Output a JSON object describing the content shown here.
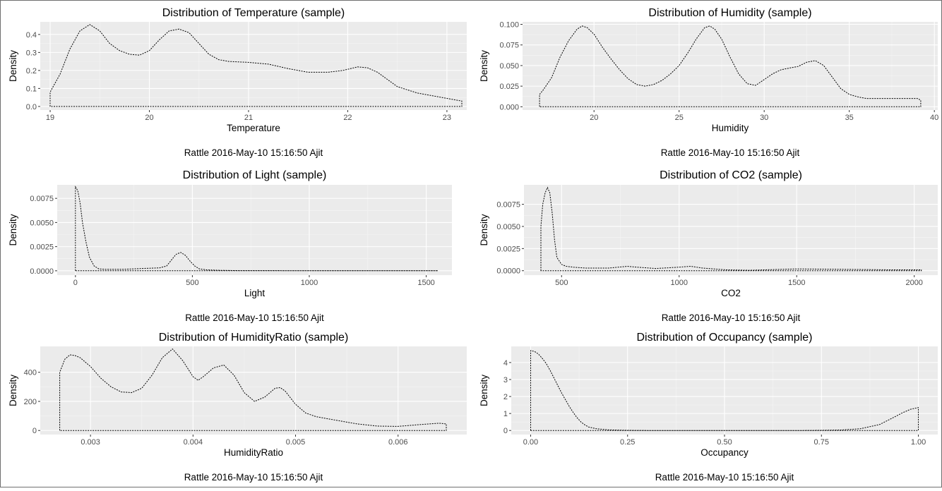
{
  "colors": {
    "panel_bg": "#ebebeb",
    "grid_major": "#ffffff",
    "grid_minor": "#f5f5f5",
    "line": "#000000",
    "axis_text": "#4d4d4d"
  },
  "chart_data": [
    {
      "type": "area",
      "title": "Distribution of Temperature (sample)",
      "xlabel": "Temperature",
      "ylabel": "Density",
      "caption": "Rattle 2016-May-10 15:16:50 Ajit",
      "xlim": [
        18.9,
        23.2
      ],
      "ylim": [
        -0.02,
        0.47
      ],
      "xticks": [
        19,
        20,
        21,
        22,
        23
      ],
      "xtick_labels": [
        "19",
        "20",
        "21",
        "22",
        "23"
      ],
      "yticks": [
        0,
        0.1,
        0.2,
        0.3,
        0.4
      ],
      "ytick_labels": [
        "0.0",
        "0.1",
        "0.2",
        "0.3",
        "0.4"
      ],
      "series": [
        {
          "x": [
            19.0,
            19.0,
            19.1,
            19.2,
            19.3,
            19.4,
            19.5,
            19.6,
            19.7,
            19.8,
            19.9,
            20.0,
            20.1,
            20.2,
            20.3,
            20.4,
            20.5,
            20.6,
            20.7,
            20.8,
            21.0,
            21.2,
            21.4,
            21.6,
            21.8,
            21.95,
            22.1,
            22.2,
            22.3,
            22.4,
            22.5,
            22.7,
            22.9,
            23.1,
            23.15,
            23.15
          ],
          "y": [
            0.0,
            0.08,
            0.18,
            0.32,
            0.42,
            0.455,
            0.42,
            0.35,
            0.31,
            0.29,
            0.285,
            0.31,
            0.37,
            0.42,
            0.43,
            0.41,
            0.35,
            0.29,
            0.26,
            0.25,
            0.245,
            0.235,
            0.21,
            0.19,
            0.19,
            0.2,
            0.22,
            0.215,
            0.19,
            0.15,
            0.11,
            0.075,
            0.055,
            0.035,
            0.03,
            0.0
          ]
        }
      ]
    },
    {
      "type": "area",
      "title": "Distribution of Humidity (sample)",
      "xlabel": "Humidity",
      "ylabel": "Density",
      "caption": "Rattle 2016-May-10 15:16:50 Ajit",
      "xlim": [
        15.8,
        40.2
      ],
      "ylim": [
        -0.004,
        0.103
      ],
      "xticks": [
        20,
        25,
        30,
        35,
        40
      ],
      "xtick_labels": [
        "20",
        "25",
        "30",
        "35",
        "40"
      ],
      "yticks": [
        0,
        0.025,
        0.05,
        0.075,
        0.1
      ],
      "ytick_labels": [
        "0.000",
        "0.025",
        "0.050",
        "0.075",
        "0.100"
      ],
      "series": [
        {
          "x": [
            16.8,
            16.8,
            17.0,
            17.5,
            18.0,
            18.5,
            19.0,
            19.3,
            19.6,
            20.0,
            20.5,
            21.0,
            21.5,
            22.0,
            22.5,
            23.0,
            23.5,
            24.0,
            24.5,
            25.0,
            25.5,
            26.0,
            26.5,
            26.8,
            27.1,
            27.5,
            28.0,
            28.5,
            29.0,
            29.5,
            30.0,
            30.5,
            31.0,
            31.5,
            32.0,
            32.5,
            33.0,
            33.5,
            34.0,
            34.5,
            35.0,
            35.5,
            36.0,
            37.0,
            38.0,
            39.0,
            39.2,
            39.2
          ],
          "y": [
            0.0,
            0.015,
            0.02,
            0.035,
            0.06,
            0.08,
            0.094,
            0.098,
            0.096,
            0.088,
            0.072,
            0.058,
            0.045,
            0.034,
            0.027,
            0.025,
            0.027,
            0.032,
            0.04,
            0.05,
            0.065,
            0.082,
            0.096,
            0.098,
            0.094,
            0.082,
            0.06,
            0.04,
            0.028,
            0.026,
            0.033,
            0.04,
            0.045,
            0.047,
            0.049,
            0.054,
            0.056,
            0.05,
            0.036,
            0.022,
            0.015,
            0.012,
            0.01,
            0.01,
            0.01,
            0.01,
            0.008,
            0.0
          ]
        }
      ]
    },
    {
      "type": "area",
      "title": "Distribution of Light (sample)",
      "xlabel": "Light",
      "ylabel": "Density",
      "caption": "Rattle 2016-May-10 15:16:50 Ajit",
      "xlim": [
        -78,
        1610
      ],
      "ylim": [
        -0.00045,
        0.0089
      ],
      "xticks": [
        0,
        500,
        1000,
        1500
      ],
      "xtick_labels": [
        "0",
        "500",
        "1000",
        "1500"
      ],
      "yticks": [
        0,
        0.0025,
        0.005,
        0.0075
      ],
      "ytick_labels": [
        "0.0000",
        "0.0025",
        "0.0050",
        "0.0075"
      ],
      "series": [
        {
          "x": [
            0,
            0,
            10,
            20,
            30,
            45,
            60,
            80,
            100,
            130,
            200,
            300,
            360,
            390,
            410,
            430,
            450,
            470,
            490,
            510,
            530,
            560,
            620,
            700,
            900,
            1200,
            1550,
            1550
          ],
          "y": [
            0,
            0.0087,
            0.0083,
            0.007,
            0.005,
            0.003,
            0.0014,
            0.0005,
            0.0002,
            0.00015,
            0.00015,
            0.00025,
            0.0003,
            0.0005,
            0.0011,
            0.0017,
            0.0019,
            0.0016,
            0.001,
            0.0005,
            0.0002,
            0.0001,
            5e-05,
            2e-05,
            1e-05,
            1e-05,
            1e-05,
            0
          ]
        }
      ]
    },
    {
      "type": "area",
      "title": "Distribution of CO2 (sample)",
      "xlabel": "CO2",
      "ylabel": "Density",
      "caption": "Rattle 2016-May-10 15:16:50 Ajit",
      "xlim": [
        340,
        2100
      ],
      "ylim": [
        -0.0005,
        0.0097
      ],
      "xticks": [
        500,
        1000,
        1500,
        2000
      ],
      "xtick_labels": [
        "500",
        "1000",
        "1500",
        "2000"
      ],
      "yticks": [
        0,
        0.0025,
        0.005,
        0.0075
      ],
      "ytick_labels": [
        "0.0000",
        "0.0025",
        "0.0050",
        "0.0075"
      ],
      "series": [
        {
          "x": [
            412,
            412,
            420,
            430,
            440,
            450,
            460,
            470,
            480,
            500,
            520,
            550,
            600,
            700,
            780,
            820,
            900,
            1000,
            1050,
            1100,
            1200,
            1300,
            1500,
            1700,
            1900,
            2030,
            2030
          ],
          "y": [
            0,
            0.005,
            0.0075,
            0.0088,
            0.0094,
            0.0088,
            0.0065,
            0.0035,
            0.0015,
            0.0007,
            0.0005,
            0.0004,
            0.0003,
            0.0003,
            0.0005,
            0.0004,
            0.00025,
            0.0004,
            0.0005,
            0.0003,
            0.0001,
            5e-05,
            0.0002,
            0.00015,
            0.0001,
            0.0001,
            0
          ]
        }
      ]
    },
    {
      "type": "area",
      "title": "Distribution of HumidityRatio (sample)",
      "xlabel": "HumidityRatio",
      "ylabel": "Density",
      "caption": "Rattle 2016-May-10 15:16:50 Ajit",
      "xlim": [
        0.00251,
        0.00667
      ],
      "ylim": [
        -28,
        578
      ],
      "xticks": [
        0.003,
        0.004,
        0.005,
        0.006
      ],
      "xtick_labels": [
        "0.003",
        "0.004",
        "0.005",
        "0.006"
      ],
      "yticks": [
        0,
        200,
        400
      ],
      "ytick_labels": [
        "0",
        "200",
        "400"
      ],
      "series": [
        {
          "x": [
            0.0027,
            0.0027,
            0.00275,
            0.0028,
            0.00285,
            0.0029,
            0.003,
            0.0031,
            0.0032,
            0.0033,
            0.0034,
            0.0035,
            0.0036,
            0.0037,
            0.0038,
            0.0039,
            0.004,
            0.00405,
            0.0041,
            0.0042,
            0.0043,
            0.0044,
            0.0045,
            0.0046,
            0.0047,
            0.0048,
            0.00485,
            0.0049,
            0.005,
            0.0051,
            0.0052,
            0.0054,
            0.0056,
            0.0058,
            0.006,
            0.0062,
            0.0064,
            0.00647,
            0.00647
          ],
          "y": [
            0,
            400,
            490,
            520,
            515,
            500,
            440,
            360,
            300,
            265,
            260,
            290,
            380,
            500,
            560,
            480,
            370,
            345,
            370,
            430,
            450,
            380,
            260,
            200,
            230,
            290,
            295,
            270,
            180,
            120,
            95,
            70,
            45,
            30,
            28,
            40,
            50,
            45,
            0
          ]
        }
      ]
    },
    {
      "type": "area",
      "title": "Distribution of Occupancy (sample)",
      "xlabel": "Occupancy",
      "ylabel": "Density",
      "caption": "Rattle 2016-May-10 15:16:50 Ajit",
      "xlim": [
        -0.05,
        1.05
      ],
      "ylim": [
        -0.24,
        4.95
      ],
      "xticks": [
        0,
        0.25,
        0.5,
        0.75,
        1.0
      ],
      "xtick_labels": [
        "0.00",
        "0.25",
        "0.50",
        "0.75",
        "1.00"
      ],
      "yticks": [
        0,
        1,
        2,
        3,
        4
      ],
      "ytick_labels": [
        "0",
        "1",
        "2",
        "3",
        "4"
      ],
      "series": [
        {
          "x": [
            0,
            0,
            0.01,
            0.02,
            0.03,
            0.04,
            0.05,
            0.06,
            0.07,
            0.08,
            0.09,
            0.1,
            0.11,
            0.12,
            0.13,
            0.14,
            0.15,
            0.17,
            0.2,
            0.25,
            0.3,
            0.5,
            0.7,
            0.75,
            0.8,
            0.85,
            0.9,
            0.93,
            0.96,
            0.98,
            1.0,
            1.0
          ],
          "y": [
            0,
            4.7,
            4.65,
            4.5,
            4.25,
            3.95,
            3.55,
            3.1,
            2.65,
            2.2,
            1.8,
            1.4,
            1.05,
            0.75,
            0.5,
            0.33,
            0.2,
            0.1,
            0.04,
            0.01,
            0.0,
            0.0,
            0.0,
            0.01,
            0.03,
            0.1,
            0.35,
            0.7,
            1.05,
            1.25,
            1.35,
            0
          ]
        }
      ]
    }
  ]
}
